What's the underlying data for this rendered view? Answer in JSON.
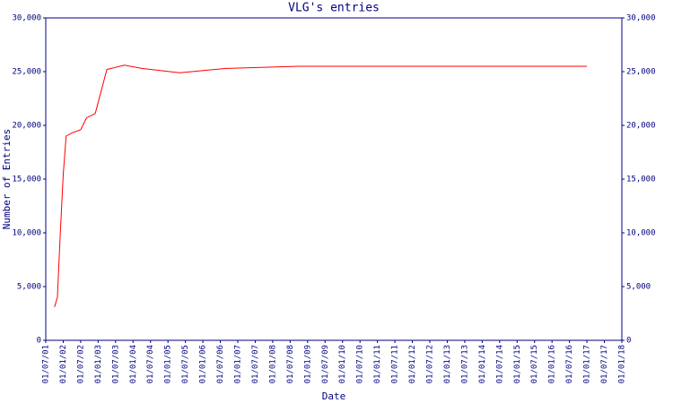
{
  "chart_data": {
    "type": "line",
    "title": "VLG's entries",
    "x_label": "Date",
    "y_label": "Number of Entries",
    "x": [
      "01/10/01",
      "01/11/01",
      "01/12/01",
      "01/01/02",
      "01/02/02",
      "01/04/02",
      "01/07/02",
      "01/09/02",
      "01/12/02",
      "01/04/03",
      "01/10/03",
      "01/04/04",
      "01/05/05",
      "01/09/06",
      "01/09/07",
      "01/10/08",
      "01/01/17"
    ],
    "series": [
      {
        "name": "VLG",
        "color": "#ff0000",
        "values": [
          3100,
          4000,
          10000,
          15400,
          19000,
          19300,
          19600,
          20700,
          21100,
          25200,
          25600,
          25300,
          24900,
          25300,
          25400,
          25500,
          25500
        ]
      }
    ],
    "xlim": [
      "01/07/01",
      "01/01/18"
    ],
    "xticks": [
      "01/07/01",
      "01/01/02",
      "01/07/02",
      "01/01/03",
      "01/07/03",
      "01/01/04",
      "01/07/04",
      "01/01/05",
      "01/07/05",
      "01/01/06",
      "01/07/06",
      "01/01/07",
      "01/07/07",
      "01/01/08",
      "01/07/08",
      "01/01/09",
      "01/07/09",
      "01/01/10",
      "01/07/10",
      "01/01/11",
      "01/07/11",
      "01/01/12",
      "01/07/12",
      "01/01/13",
      "01/07/13",
      "01/01/14",
      "01/07/14",
      "01/01/15",
      "01/07/15",
      "01/01/16",
      "01/07/16",
      "01/01/17",
      "01/07/17",
      "01/01/18"
    ],
    "ylim": [
      0,
      30000
    ],
    "yticks": [
      0,
      {
        "value": 5000,
        "label": "5,000"
      },
      {
        "value": 10000,
        "label": "10,000"
      },
      {
        "value": 15000,
        "label": "15,000"
      },
      {
        "value": 20000,
        "label": "20,000"
      },
      {
        "value": 25000,
        "label": "25,000"
      },
      {
        "value": 30000,
        "label": "30,000"
      }
    ]
  }
}
